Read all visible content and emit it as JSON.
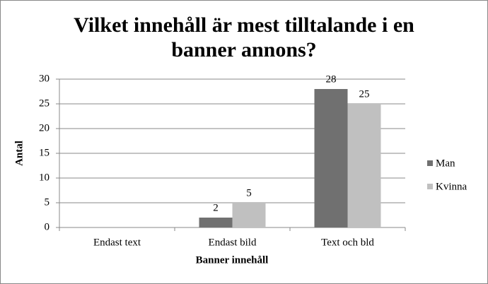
{
  "chart_data": {
    "type": "bar",
    "title": [
      "Vilket innehåll är mest tilltalande i en",
      "banner annons?"
    ],
    "x_label": "Banner innehåll",
    "y_label": "Antal",
    "categories": [
      "Endast text",
      "Endast bild",
      "Text och bld"
    ],
    "series": [
      {
        "name": "Man",
        "color": "#707070",
        "values": [
          0,
          2,
          28
        ]
      },
      {
        "name": "Kvinna",
        "color": "#c0c0c0",
        "values": [
          0,
          5,
          25
        ]
      }
    ],
    "ylim": [
      0,
      30
    ],
    "yticks": [
      0,
      5,
      10,
      15,
      20,
      25,
      30
    ],
    "grid": true,
    "legend": "right"
  }
}
